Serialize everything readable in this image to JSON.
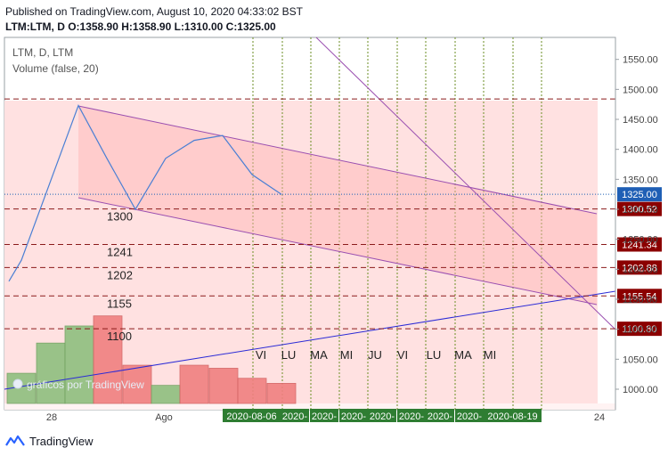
{
  "header": {
    "published": "Published on TradingView.com, August 10, 2020 04:33:02 BST",
    "ohlc": "LTM:LTM, D O:1358.90 H:1358.90 L:1310.00 C:1325.00"
  },
  "legend": {
    "symbol": "LTM, D, LTM",
    "volume": "Volume (false, 20)"
  },
  "watermark": "gráficos por TradingView",
  "footer": {
    "brand": "TradingView"
  },
  "colors": {
    "line": "#4a7fd4",
    "channel": "#9a4fb0",
    "trend": "#2b2bd6",
    "dashed": "#8b1a1a",
    "vgrid": "#6b8e23",
    "zone": "#ffe1e1",
    "vol_up": "#8fbf7f",
    "vol_down": "#f08080",
    "current": "#1f5fb5"
  },
  "chart_data": {
    "type": "line",
    "y_axis": {
      "min": 980,
      "max": 1570,
      "ticks": [
        1000,
        1050,
        1100,
        1150,
        1200,
        1250,
        1300,
        1350,
        1400,
        1450,
        1500,
        1550
      ]
    },
    "x_axis": {
      "ticks": [
        "28",
        "Ago",
        "24"
      ]
    },
    "close_series": [
      {
        "x": "07-24",
        "y": 1180
      },
      {
        "x": "07-25",
        "y": 1215
      },
      {
        "x": "07-27",
        "y": 1340
      },
      {
        "x": "07-28",
        "y": 1473
      },
      {
        "x": "07-29",
        "y": 1385
      },
      {
        "x": "07-30",
        "y": 1300
      },
      {
        "x": "07-31",
        "y": 1385
      },
      {
        "x": "08-03",
        "y": 1415
      },
      {
        "x": "08-04",
        "y": 1423
      },
      {
        "x": "08-05",
        "y": 1358
      },
      {
        "x": "08-06",
        "y": 1325
      }
    ],
    "volume": [
      {
        "x": "07-24",
        "v": 0.3,
        "dir": "up"
      },
      {
        "x": "07-27",
        "v": 0.6,
        "dir": "up"
      },
      {
        "x": "07-28",
        "v": 0.77,
        "dir": "up"
      },
      {
        "x": "07-29",
        "v": 0.87,
        "dir": "down"
      },
      {
        "x": "07-30",
        "v": 0.38,
        "dir": "down"
      },
      {
        "x": "07-31",
        "v": 0.18,
        "dir": "up"
      },
      {
        "x": "08-03",
        "v": 0.38,
        "dir": "down"
      },
      {
        "x": "08-04",
        "v": 0.35,
        "dir": "down"
      },
      {
        "x": "08-05",
        "v": 0.25,
        "dir": "down"
      },
      {
        "x": "08-06",
        "v": 0.2,
        "dir": "down"
      }
    ],
    "levels": [
      {
        "value": 1484,
        "label": "",
        "badge": ""
      },
      {
        "value": 1300.52,
        "label": "1300",
        "badge": "1300.52"
      },
      {
        "value": 1241.34,
        "label": "1241",
        "badge": "1241.34"
      },
      {
        "value": 1202.88,
        "label": "1202",
        "badge": "1202.88"
      },
      {
        "value": 1155.54,
        "label": "1155",
        "badge": "1155.54"
      },
      {
        "value": 1100.8,
        "label": "1100",
        "badge": "1100.80"
      }
    ],
    "current_price": "1325.00",
    "weekdays": [
      "VI",
      "LU",
      "MA",
      "MI",
      "JU",
      "VI",
      "LU",
      "MA",
      "MI"
    ],
    "date_labels": [
      "2020-08-06",
      "2020-",
      "2020-",
      "2020-",
      "2020-",
      "2020-",
      "2020-",
      "2020-",
      "2020-08-19"
    ]
  }
}
